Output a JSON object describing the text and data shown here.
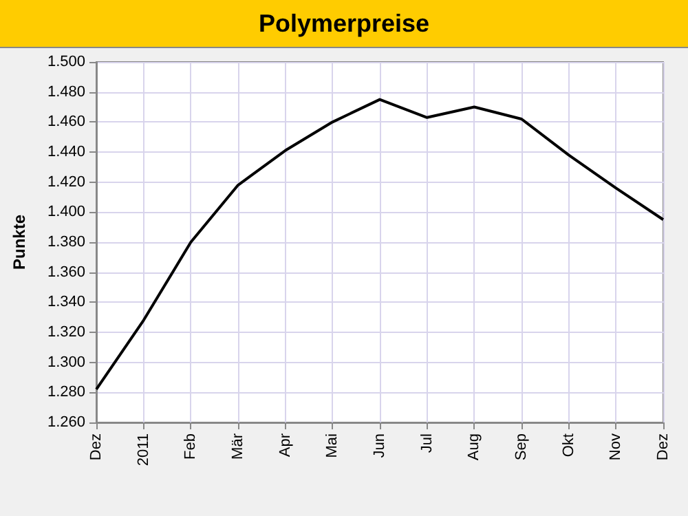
{
  "chart_data": {
    "type": "line",
    "title": "Polymerpreise",
    "ylabel": "Punkte",
    "categories": [
      "Dez",
      "2011",
      "Feb",
      "Mär",
      "Apr",
      "Mai",
      "Jun",
      "Jul",
      "Aug",
      "Sep",
      "Okt",
      "Nov",
      "Dez"
    ],
    "series": [
      {
        "color": "#000000",
        "values": [
          1282,
          1328,
          1380,
          1418,
          1441,
          1460,
          1475,
          1463,
          1470,
          1462,
          1438,
          1416,
          1395
        ]
      }
    ],
    "ylim": [
      1260,
      1500
    ],
    "yticks": [
      {
        "value": 1260,
        "label": "1.260"
      },
      {
        "value": 1280,
        "label": "1.280"
      },
      {
        "value": 1300,
        "label": "1.300"
      },
      {
        "value": 1320,
        "label": "1.320"
      },
      {
        "value": 1340,
        "label": "1.340"
      },
      {
        "value": 1360,
        "label": "1.360"
      },
      {
        "value": 1380,
        "label": "1.380"
      },
      {
        "value": 1400,
        "label": "1.400"
      },
      {
        "value": 1420,
        "label": "1.420"
      },
      {
        "value": 1440,
        "label": "1.440"
      },
      {
        "value": 1460,
        "label": "1.460"
      },
      {
        "value": 1480,
        "label": "1.480"
      },
      {
        "value": 1500,
        "label": "1.500"
      }
    ],
    "grid": true,
    "marker": "none",
    "line_style": "solid"
  }
}
